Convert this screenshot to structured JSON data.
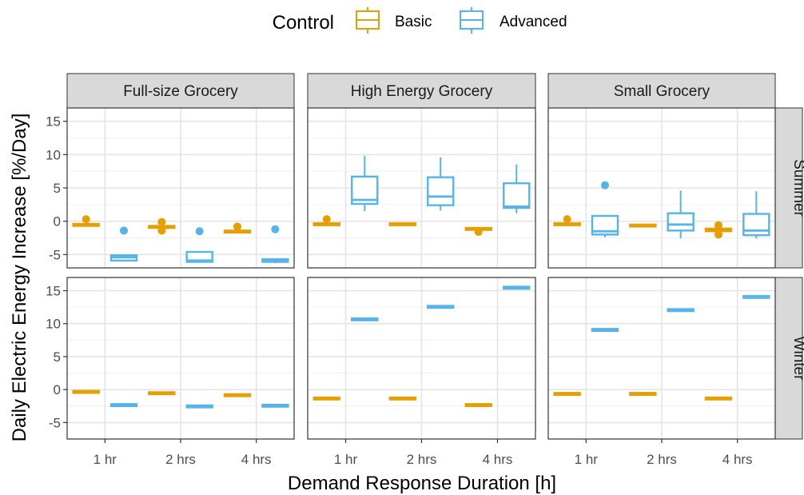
{
  "legend": {
    "title": "Control",
    "items": [
      {
        "label": "Basic",
        "color": "#E69F00"
      },
      {
        "label": "Advanced",
        "color": "#56B4E9"
      }
    ]
  },
  "axes": {
    "xlabel": "Demand Response Duration [h]",
    "ylabel": "Daily Electric Energy Increase [%/Day]"
  },
  "chart_data": {
    "type": "boxplot",
    "xlabel": "Demand Response Duration [h]",
    "ylabel": "Daily Electric Energy Increase [%/Day]",
    "legend_title": "Control",
    "legend_position": "top",
    "grid": true,
    "categories": [
      "1 hr",
      "2 hrs",
      "4 hrs"
    ],
    "columns": [
      "Full-size Grocery",
      "High Energy Grocery",
      "Small Grocery"
    ],
    "rows": [
      {
        "name": "Summer",
        "ylim": [
          -7,
          17
        ],
        "yticks": [
          -5,
          0,
          5,
          10,
          15
        ]
      },
      {
        "name": "Winter",
        "ylim": [
          -7.5,
          17
        ],
        "yticks": [
          -5,
          0,
          5,
          10,
          15
        ]
      }
    ],
    "series": [
      {
        "name": "Basic",
        "color": "#E69F00"
      },
      {
        "name": "Advanced",
        "color": "#56B4E9"
      }
    ],
    "panels": [
      {
        "column": "Full-size Grocery",
        "row": "Summer",
        "boxes": [
          {
            "category": "1 hr",
            "series": "Basic",
            "whisker_low": -0.5,
            "q1": -0.5,
            "median": -0.5,
            "q3": -0.4,
            "whisker_high": -0.4,
            "outliers": [
              0.3
            ]
          },
          {
            "category": "1 hr",
            "series": "Advanced",
            "whisker_low": -5.9,
            "q1": -5.9,
            "median": -5.4,
            "q3": -5.1,
            "whisker_high": -5.1,
            "outliers": [
              -1.4
            ]
          },
          {
            "category": "2 hrs",
            "series": "Basic",
            "whisker_low": -0.9,
            "q1": -0.9,
            "median": -0.8,
            "q3": -0.7,
            "whisker_high": -0.7,
            "outliers": [
              -0.1,
              -1.4
            ]
          },
          {
            "category": "2 hrs",
            "series": "Advanced",
            "whisker_low": -6.1,
            "q1": -6.1,
            "median": -5.9,
            "q3": -4.6,
            "whisker_high": -4.6,
            "outliers": [
              -1.5
            ]
          },
          {
            "category": "4 hrs",
            "series": "Basic",
            "whisker_low": -1.7,
            "q1": -1.7,
            "median": -1.5,
            "q3": -1.4,
            "whisker_high": -1.4,
            "outliers": [
              -0.8
            ]
          },
          {
            "category": "4 hrs",
            "series": "Advanced",
            "whisker_low": -6.3,
            "q1": -6.1,
            "median": -5.9,
            "q3": -5.7,
            "whisker_high": -5.7,
            "outliers": [
              -1.2
            ]
          }
        ]
      },
      {
        "column": "High Energy Grocery",
        "row": "Summer",
        "boxes": [
          {
            "category": "1 hr",
            "series": "Basic",
            "whisker_low": -0.5,
            "q1": -0.5,
            "median": -0.4,
            "q3": -0.3,
            "whisker_high": -0.3,
            "outliers": [
              0.3
            ]
          },
          {
            "category": "1 hr",
            "series": "Advanced",
            "whisker_low": 1.5,
            "q1": 2.6,
            "median": 3.2,
            "q3": 6.7,
            "whisker_high": 9.8,
            "outliers": []
          },
          {
            "category": "2 hrs",
            "series": "Basic",
            "whisker_low": -0.7,
            "q1": -0.6,
            "median": -0.4,
            "q3": -0.3,
            "whisker_high": -0.3,
            "outliers": []
          },
          {
            "category": "2 hrs",
            "series": "Advanced",
            "whisker_low": 1.6,
            "q1": 2.4,
            "median": 3.7,
            "q3": 6.6,
            "whisker_high": 9.6,
            "outliers": []
          },
          {
            "category": "4 hrs",
            "series": "Basic",
            "whisker_low": -1.2,
            "q1": -1.2,
            "median": -1.1,
            "q3": -1.0,
            "whisker_high": -1.0,
            "outliers": [
              -1.6
            ]
          },
          {
            "category": "4 hrs",
            "series": "Advanced",
            "whisker_low": 1.2,
            "q1": 2.0,
            "median": 2.2,
            "q3": 5.7,
            "whisker_high": 8.5,
            "outliers": []
          }
        ]
      },
      {
        "column": "Small Grocery",
        "row": "Summer",
        "boxes": [
          {
            "category": "1 hr",
            "series": "Basic",
            "whisker_low": -0.5,
            "q1": -0.5,
            "median": -0.4,
            "q3": -0.3,
            "whisker_high": -0.3,
            "outliers": [
              0.3
            ]
          },
          {
            "category": "1 hr",
            "series": "Advanced",
            "whisker_low": -2.4,
            "q1": -2.0,
            "median": -1.5,
            "q3": 0.8,
            "whisker_high": 0.8,
            "outliers": [
              5.4
            ]
          },
          {
            "category": "2 hrs",
            "series": "Basic",
            "whisker_low": -0.7,
            "q1": -0.7,
            "median": -0.6,
            "q3": -0.5,
            "whisker_high": -0.5,
            "outliers": []
          },
          {
            "category": "2 hrs",
            "series": "Advanced",
            "whisker_low": -2.6,
            "q1": -1.4,
            "median": -0.5,
            "q3": 1.2,
            "whisker_high": 4.6,
            "outliers": []
          },
          {
            "category": "4 hrs",
            "series": "Basic",
            "whisker_low": -1.5,
            "q1": -1.5,
            "median": -1.3,
            "q3": -1.1,
            "whisker_high": -1.1,
            "outliers": [
              -0.6,
              -2.0
            ]
          },
          {
            "category": "4 hrs",
            "series": "Advanced",
            "whisker_low": -2.6,
            "q1": -2.1,
            "median": -1.4,
            "q3": 1.1,
            "whisker_high": 4.5,
            "outliers": []
          }
        ]
      },
      {
        "column": "Full-size Grocery",
        "row": "Winter",
        "boxes": [
          {
            "category": "1 hr",
            "series": "Basic",
            "whisker_low": -0.4,
            "q1": -0.4,
            "median": -0.3,
            "q3": -0.2,
            "whisker_high": -0.2,
            "outliers": []
          },
          {
            "category": "1 hr",
            "series": "Advanced",
            "whisker_low": -2.4,
            "q1": -2.4,
            "median": -2.3,
            "q3": -2.2,
            "whisker_high": -2.2,
            "outliers": []
          },
          {
            "category": "2 hrs",
            "series": "Basic",
            "whisker_low": -0.6,
            "q1": -0.6,
            "median": -0.5,
            "q3": -0.4,
            "whisker_high": -0.4,
            "outliers": []
          },
          {
            "category": "2 hrs",
            "series": "Advanced",
            "whisker_low": -2.6,
            "q1": -2.6,
            "median": -2.5,
            "q3": -2.4,
            "whisker_high": -2.4,
            "outliers": []
          },
          {
            "category": "4 hrs",
            "series": "Basic",
            "whisker_low": -0.9,
            "q1": -0.9,
            "median": -0.8,
            "q3": -0.7,
            "whisker_high": -0.7,
            "outliers": []
          },
          {
            "category": "4 hrs",
            "series": "Advanced",
            "whisker_low": -2.5,
            "q1": -2.5,
            "median": -2.4,
            "q3": -2.3,
            "whisker_high": -2.3,
            "outliers": []
          }
        ]
      },
      {
        "column": "High Energy Grocery",
        "row": "Winter",
        "boxes": [
          {
            "category": "1 hr",
            "series": "Basic",
            "whisker_low": -1.4,
            "q1": -1.4,
            "median": -1.3,
            "q3": -1.2,
            "whisker_high": -1.2,
            "outliers": []
          },
          {
            "category": "1 hr",
            "series": "Advanced",
            "whisker_low": 10.6,
            "q1": 10.6,
            "median": 10.7,
            "q3": 10.8,
            "whisker_high": 10.8,
            "outliers": []
          },
          {
            "category": "2 hrs",
            "series": "Basic",
            "whisker_low": -1.4,
            "q1": -1.4,
            "median": -1.3,
            "q3": -1.2,
            "whisker_high": -1.2,
            "outliers": []
          },
          {
            "category": "2 hrs",
            "series": "Advanced",
            "whisker_low": 12.5,
            "q1": 12.5,
            "median": 12.6,
            "q3": 12.7,
            "whisker_high": 12.7,
            "outliers": []
          },
          {
            "category": "4 hrs",
            "series": "Basic",
            "whisker_low": -2.4,
            "q1": -2.4,
            "median": -2.3,
            "q3": -2.2,
            "whisker_high": -2.2,
            "outliers": []
          },
          {
            "category": "4 hrs",
            "series": "Advanced",
            "whisker_low": 15.4,
            "q1": 15.4,
            "median": 15.5,
            "q3": 15.6,
            "whisker_high": 15.6,
            "outliers": []
          }
        ]
      },
      {
        "column": "Small Grocery",
        "row": "Winter",
        "boxes": [
          {
            "category": "1 hr",
            "series": "Basic",
            "whisker_low": -0.7,
            "q1": -0.7,
            "median": -0.6,
            "q3": -0.5,
            "whisker_high": -0.5,
            "outliers": []
          },
          {
            "category": "1 hr",
            "series": "Advanced",
            "whisker_low": 9.0,
            "q1": 9.0,
            "median": 9.1,
            "q3": 9.2,
            "whisker_high": 9.2,
            "outliers": []
          },
          {
            "category": "2 hrs",
            "series": "Basic",
            "whisker_low": -0.7,
            "q1": -0.7,
            "median": -0.6,
            "q3": -0.5,
            "whisker_high": -0.5,
            "outliers": []
          },
          {
            "category": "2 hrs",
            "series": "Advanced",
            "whisker_low": 12.0,
            "q1": 12.0,
            "median": 12.1,
            "q3": 12.2,
            "whisker_high": 12.2,
            "outliers": []
          },
          {
            "category": "4 hrs",
            "series": "Basic",
            "whisker_low": -1.4,
            "q1": -1.4,
            "median": -1.3,
            "q3": -1.2,
            "whisker_high": -1.2,
            "outliers": []
          },
          {
            "category": "4 hrs",
            "series": "Advanced",
            "whisker_low": 14.0,
            "q1": 14.0,
            "median": 14.1,
            "q3": 14.2,
            "whisker_high": 14.2,
            "outliers": []
          }
        ]
      }
    ]
  }
}
